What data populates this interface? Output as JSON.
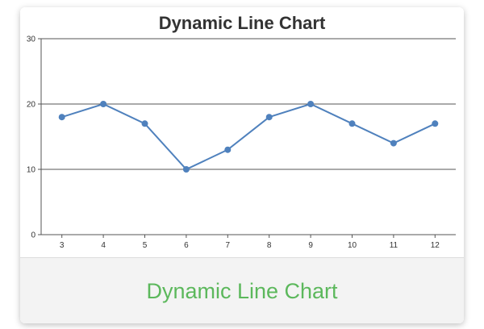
{
  "card": {
    "footer_title": "Dynamic Line Chart"
  },
  "chart_data": {
    "type": "line",
    "title": "Dynamic Line Chart",
    "xlabel": "",
    "ylabel": "",
    "x": [
      3,
      4,
      5,
      6,
      7,
      8,
      9,
      10,
      11,
      12
    ],
    "values": [
      18,
      20,
      17,
      10,
      13,
      18,
      20,
      17,
      14,
      17
    ],
    "xlim": [
      2.5,
      12.5
    ],
    "ylim": [
      0,
      30
    ],
    "yticks": [
      0,
      10,
      20,
      30
    ],
    "xticks": [
      "3",
      "4",
      "5",
      "6",
      "7",
      "8",
      "9",
      "10",
      "11",
      "12"
    ],
    "grid": "horizontal",
    "legend": "none",
    "colors": {
      "line": "#4f81bd",
      "grid": "#555555",
      "axis": "#555555",
      "footer_text": "#5cb85c"
    }
  }
}
